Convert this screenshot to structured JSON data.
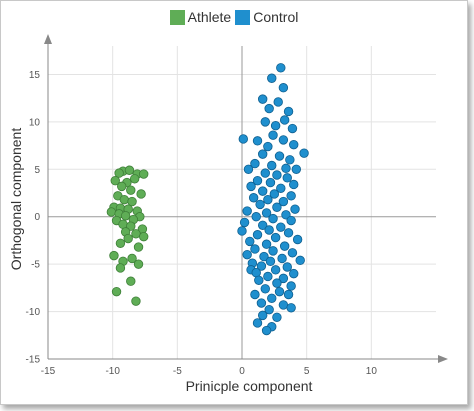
{
  "chart_data": {
    "type": "scatter",
    "title": "",
    "xlabel": "Prinicple component",
    "ylabel": "Orthogonal component",
    "xlim": [
      -15,
      15
    ],
    "ylim": [
      -15,
      18
    ],
    "xticks": [
      -15,
      -10,
      -5,
      0,
      5,
      10
    ],
    "yticks": [
      -15,
      -10,
      -5,
      0,
      5,
      10,
      15
    ],
    "grid": true,
    "legend_position": "top-center",
    "series": [
      {
        "name": "Athlete",
        "color": "#5fad56",
        "points": [
          [
            -9.2,
            4.8
          ],
          [
            -8.7,
            4.9
          ],
          [
            -9.5,
            4.6
          ],
          [
            -8.1,
            4.5
          ],
          [
            -7.6,
            4.5
          ],
          [
            -8.3,
            4.0
          ],
          [
            -9.8,
            3.8
          ],
          [
            -8.9,
            3.6
          ],
          [
            -9.3,
            3.2
          ],
          [
            -8.6,
            2.8
          ],
          [
            -7.8,
            2.4
          ],
          [
            -9.6,
            2.2
          ],
          [
            -9.1,
            1.8
          ],
          [
            -8.5,
            1.6
          ],
          [
            -9.9,
            1.0
          ],
          [
            -9.4,
            0.9
          ],
          [
            -8.8,
            0.8
          ],
          [
            -8.1,
            0.6
          ],
          [
            -10.1,
            0.5
          ],
          [
            -9.5,
            0.3
          ],
          [
            -9.0,
            0.1
          ],
          [
            -7.9,
            0.0
          ],
          [
            -8.4,
            -0.3
          ],
          [
            -9.7,
            -0.4
          ],
          [
            -9.2,
            -0.8
          ],
          [
            -8.6,
            -1.0
          ],
          [
            -7.7,
            -1.3
          ],
          [
            -9.0,
            -1.6
          ],
          [
            -8.2,
            -1.8
          ],
          [
            -7.6,
            -2.1
          ],
          [
            -8.8,
            -2.3
          ],
          [
            -9.4,
            -2.8
          ],
          [
            -8.0,
            -3.2
          ],
          [
            -9.9,
            -4.1
          ],
          [
            -8.5,
            -4.4
          ],
          [
            -9.2,
            -4.7
          ],
          [
            -8.0,
            -5.0
          ],
          [
            -9.4,
            -5.4
          ],
          [
            -8.6,
            -6.8
          ],
          [
            -9.7,
            -7.9
          ],
          [
            -8.2,
            -8.9
          ]
        ]
      },
      {
        "name": "Control",
        "color": "#1f8fce",
        "points": [
          [
            3.0,
            15.7
          ],
          [
            2.3,
            14.6
          ],
          [
            3.2,
            13.6
          ],
          [
            1.6,
            12.4
          ],
          [
            2.8,
            12.1
          ],
          [
            3.6,
            11.1
          ],
          [
            2.1,
            11.4
          ],
          [
            3.3,
            10.2
          ],
          [
            1.8,
            10.0
          ],
          [
            2.6,
            9.6
          ],
          [
            3.9,
            9.3
          ],
          [
            0.1,
            8.2
          ],
          [
            2.4,
            8.6
          ],
          [
            1.2,
            8.0
          ],
          [
            3.2,
            8.1
          ],
          [
            4.0,
            7.6
          ],
          [
            2.0,
            7.4
          ],
          [
            4.8,
            6.7
          ],
          [
            1.6,
            6.6
          ],
          [
            2.9,
            6.4
          ],
          [
            3.7,
            6.0
          ],
          [
            1.0,
            5.6
          ],
          [
            2.3,
            5.4
          ],
          [
            3.4,
            5.1
          ],
          [
            4.2,
            5.0
          ],
          [
            0.5,
            5.0
          ],
          [
            1.8,
            4.6
          ],
          [
            2.7,
            4.4
          ],
          [
            3.5,
            4.1
          ],
          [
            1.2,
            3.8
          ],
          [
            2.2,
            3.6
          ],
          [
            4.0,
            3.4
          ],
          [
            0.7,
            3.2
          ],
          [
            3.0,
            3.0
          ],
          [
            1.6,
            2.7
          ],
          [
            2.5,
            2.4
          ],
          [
            3.8,
            2.2
          ],
          [
            0.9,
            2.0
          ],
          [
            2.0,
            1.8
          ],
          [
            3.2,
            1.6
          ],
          [
            1.4,
            1.3
          ],
          [
            2.7,
            1.0
          ],
          [
            4.1,
            0.8
          ],
          [
            0.4,
            0.6
          ],
          [
            1.9,
            0.4
          ],
          [
            3.4,
            0.2
          ],
          [
            1.1,
            0.0
          ],
          [
            2.4,
            -0.2
          ],
          [
            3.8,
            -0.4
          ],
          [
            0.2,
            -0.6
          ],
          [
            1.6,
            -0.9
          ],
          [
            3.0,
            -1.1
          ],
          [
            2.1,
            -1.4
          ],
          [
            0.0,
            -1.5
          ],
          [
            3.6,
            -1.7
          ],
          [
            1.2,
            -1.9
          ],
          [
            2.6,
            -2.2
          ],
          [
            4.3,
            -2.4
          ],
          [
            0.6,
            -2.6
          ],
          [
            1.9,
            -2.9
          ],
          [
            3.3,
            -3.1
          ],
          [
            1.0,
            -3.4
          ],
          [
            2.4,
            -3.6
          ],
          [
            3.9,
            -3.8
          ],
          [
            0.4,
            -4.0
          ],
          [
            1.7,
            -4.2
          ],
          [
            3.1,
            -4.4
          ],
          [
            2.2,
            -4.7
          ],
          [
            4.5,
            -4.6
          ],
          [
            0.8,
            -4.9
          ],
          [
            1.5,
            -5.2
          ],
          [
            3.5,
            -5.3
          ],
          [
            0.7,
            -5.6
          ],
          [
            2.6,
            -5.6
          ],
          [
            1.1,
            -5.9
          ],
          [
            4.0,
            -6.0
          ],
          [
            2.0,
            -6.3
          ],
          [
            3.2,
            -6.5
          ],
          [
            1.3,
            -6.7
          ],
          [
            2.7,
            -7.0
          ],
          [
            3.8,
            -7.3
          ],
          [
            1.8,
            -7.6
          ],
          [
            2.9,
            -7.9
          ],
          [
            1.0,
            -8.2
          ],
          [
            3.6,
            -8.2
          ],
          [
            2.3,
            -8.6
          ],
          [
            1.5,
            -9.1
          ],
          [
            3.2,
            -9.3
          ],
          [
            2.1,
            -9.8
          ],
          [
            3.8,
            -9.6
          ],
          [
            1.6,
            -10.4
          ],
          [
            2.7,
            -10.6
          ],
          [
            1.2,
            -11.2
          ],
          [
            2.3,
            -11.6
          ],
          [
            1.9,
            -12.0
          ]
        ]
      }
    ]
  }
}
